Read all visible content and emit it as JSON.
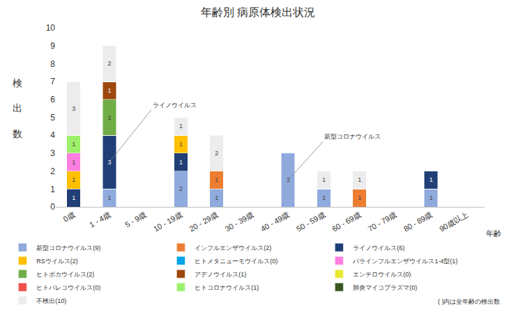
{
  "chart_data": {
    "type": "bar",
    "title": "年齢別 病原体検出状況",
    "x_label": "年齢",
    "y_label": "検出数",
    "stacked": true,
    "data_labels": true,
    "grid": false,
    "legend": "bottom",
    "categories": [
      "0歳",
      "1 - 4歳",
      "5 - 9歳",
      "10 - 19歳",
      "20 - 29歳",
      "30 - 39歳",
      "40 - 49歳",
      "50 - 59歳",
      "60 - 69歳",
      "70 - 79歳",
      "80 - 89歳",
      "90歳以上"
    ],
    "ylim": [
      0,
      10
    ],
    "yticks": [
      0,
      1,
      2,
      3,
      4,
      5,
      6,
      7,
      8,
      9,
      10
    ],
    "series": [
      {
        "name": "新型コロナウイルス(9)",
        "color": "#8faadc",
        "values": [
          0,
          1,
          0,
          2,
          1,
          0,
          3,
          1,
          0,
          0,
          1,
          0
        ]
      },
      {
        "name": "インフルエンザウイルス(2)",
        "color": "#ed7d31",
        "values": [
          0,
          0,
          0,
          0,
          1,
          0,
          0,
          0,
          1,
          0,
          0,
          0
        ]
      },
      {
        "name": "ライノウイルス(6)",
        "color": "#203f77",
        "values": [
          1,
          3,
          0,
          1,
          0,
          0,
          0,
          0,
          0,
          0,
          1,
          0
        ]
      },
      {
        "name": "RSウイルス(2)",
        "color": "#ffc000",
        "values": [
          1,
          0,
          0,
          1,
          0,
          0,
          0,
          0,
          0,
          0,
          0,
          0
        ]
      },
      {
        "name": "ヒトメタニューモウイルス(0)",
        "color": "#00a2e8",
        "values": [
          0,
          0,
          0,
          0,
          0,
          0,
          0,
          0,
          0,
          0,
          0,
          0
        ]
      },
      {
        "name": "パラインフルエンザウイルス1-4型(1)",
        "color": "#ff7ee0",
        "values": [
          1,
          0,
          0,
          0,
          0,
          0,
          0,
          0,
          0,
          0,
          0,
          0
        ]
      },
      {
        "name": "ヒトボカウイルス(2)",
        "color": "#70ad47",
        "values": [
          0,
          2,
          0,
          0,
          0,
          0,
          0,
          0,
          0,
          0,
          0,
          0
        ]
      },
      {
        "name": "アデノウイルス(1)",
        "color": "#9e480e",
        "values": [
          0,
          1,
          0,
          0,
          0,
          0,
          0,
          0,
          0,
          0,
          0,
          0
        ]
      },
      {
        "name": "エンテロウイルス(0)",
        "color": "#e8e830",
        "values": [
          0,
          0,
          0,
          0,
          0,
          0,
          0,
          0,
          0,
          0,
          0,
          0
        ]
      },
      {
        "name": "ヒトパレコウイルス(0)",
        "color": "#f05050",
        "values": [
          0,
          0,
          0,
          0,
          0,
          0,
          0,
          0,
          0,
          0,
          0,
          0
        ]
      },
      {
        "name": "ヒトコロナウイルス(1)",
        "color": "#9cf06a",
        "values": [
          1,
          0,
          0,
          0,
          0,
          0,
          0,
          0,
          0,
          0,
          0,
          0
        ]
      },
      {
        "name": "肺炎マイコプラズマ(0)",
        "color": "#375623",
        "values": [
          0,
          0,
          0,
          0,
          0,
          0,
          0,
          0,
          0,
          0,
          0,
          0
        ]
      },
      {
        "name": "不検出(10)",
        "color": "#ececec",
        "values": [
          3,
          2,
          0,
          1,
          2,
          0,
          0,
          1,
          1,
          0,
          0,
          0
        ]
      }
    ],
    "annotations": [
      {
        "text": "ライノウイルス",
        "category": "1 - 4歳"
      },
      {
        "text": "新型コロナウイルス",
        "category": "40 - 49歳"
      }
    ],
    "note": "( )内は全年齢の検出数"
  }
}
